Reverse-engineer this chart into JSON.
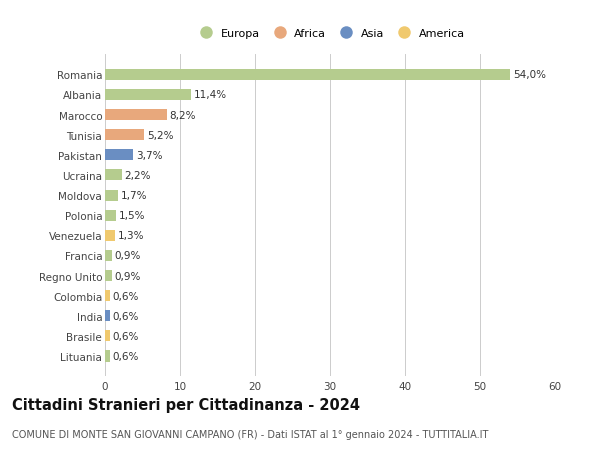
{
  "countries": [
    "Romania",
    "Albania",
    "Marocco",
    "Tunisia",
    "Pakistan",
    "Ucraina",
    "Moldova",
    "Polonia",
    "Venezuela",
    "Francia",
    "Regno Unito",
    "Colombia",
    "India",
    "Brasile",
    "Lituania"
  ],
  "values": [
    54.0,
    11.4,
    8.2,
    5.2,
    3.7,
    2.2,
    1.7,
    1.5,
    1.3,
    0.9,
    0.9,
    0.6,
    0.6,
    0.6,
    0.6
  ],
  "labels": [
    "54,0%",
    "11,4%",
    "8,2%",
    "5,2%",
    "3,7%",
    "2,2%",
    "1,7%",
    "1,5%",
    "1,3%",
    "0,9%",
    "0,9%",
    "0,6%",
    "0,6%",
    "0,6%",
    "0,6%"
  ],
  "continents": [
    "Europa",
    "Europa",
    "Africa",
    "Africa",
    "Asia",
    "Europa",
    "Europa",
    "Europa",
    "America",
    "Europa",
    "Europa",
    "America",
    "Asia",
    "America",
    "Europa"
  ],
  "continent_colors": {
    "Europa": "#b5cc8e",
    "Africa": "#e8a87c",
    "Asia": "#6a8ec2",
    "America": "#f0c96e"
  },
  "legend_order": [
    "Europa",
    "Africa",
    "Asia",
    "America"
  ],
  "title": "Cittadini Stranieri per Cittadinanza - 2024",
  "subtitle": "COMUNE DI MONTE SAN GIOVANNI CAMPANO (FR) - Dati ISTAT al 1° gennaio 2024 - TUTTITALIA.IT",
  "xlim": [
    0,
    60
  ],
  "xticks": [
    0,
    10,
    20,
    30,
    40,
    50,
    60
  ],
  "bg_color": "#ffffff",
  "grid_color": "#cccccc",
  "bar_height": 0.55,
  "label_fontsize": 7.5,
  "tick_fontsize": 7.5,
  "title_fontsize": 10.5,
  "subtitle_fontsize": 7.0
}
